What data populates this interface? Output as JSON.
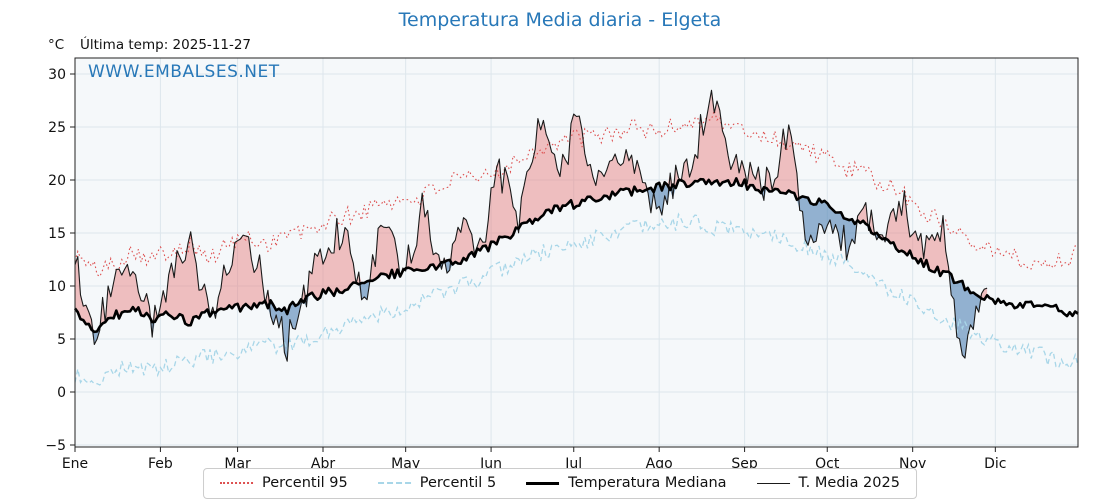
{
  "title": "Temperatura Media diaria - Elgeta",
  "header": {
    "unit_label": "°C",
    "last_temp": "Última temp: 2025-11-27"
  },
  "watermark": "WWW.EMBALSES.NET",
  "colors": {
    "title_blue": "#2878b8",
    "percentil95": "#dd5050",
    "percentil5": "#a8d6e8",
    "mediana": "#000000",
    "t_media_2025": "#1a1a1a",
    "fill_above": "#e67878",
    "fill_above_opacity": 0.45,
    "fill_below": "#5082b4",
    "fill_below_opacity": 0.6,
    "plot_bg": "#f5f8fa",
    "grid": "#dde6ec",
    "spine": "#222222"
  },
  "chart_data": {
    "type": "line",
    "title": "Temperatura Media diaria - Elgeta",
    "xlabel": "",
    "ylabel": "°C",
    "ylim": [
      -5,
      31.5
    ],
    "grid": true,
    "legend_position": "bottom-center",
    "y_ticks": [
      -5,
      0,
      5,
      10,
      15,
      20,
      25,
      30
    ],
    "x_tick_labels": [
      "Ene",
      "Feb",
      "Mar",
      "Abr",
      "May",
      "Jun",
      "Jul",
      "Ago",
      "Sep",
      "Oct",
      "Nov",
      "Dic"
    ],
    "month_start_days": [
      0,
      31,
      59,
      90,
      120,
      151,
      181,
      212,
      243,
      273,
      304,
      334
    ],
    "sampling_note": "daily curves; values below sampled every 7 days and read from gridlines",
    "sample_days": [
      0,
      7,
      14,
      21,
      28,
      35,
      42,
      49,
      56,
      63,
      70,
      77,
      84,
      91,
      98,
      105,
      112,
      119,
      126,
      133,
      140,
      147,
      154,
      161,
      168,
      175,
      182,
      189,
      196,
      203,
      210,
      217,
      224,
      231,
      238,
      245,
      252,
      259,
      266,
      273,
      280,
      287,
      294,
      301,
      308,
      315,
      322,
      329,
      336,
      343,
      350,
      357,
      364
    ],
    "series": [
      {
        "name": "Percentil 95",
        "style": "red-dotted",
        "values": [
          13,
          11.5,
          12,
          13.5,
          12.5,
          13.5,
          14,
          12.5,
          14,
          14.5,
          14,
          15,
          15,
          16,
          16.5,
          17,
          18,
          18,
          18.5,
          19.5,
          20,
          20,
          21,
          22,
          23,
          23.5,
          24,
          24,
          24.5,
          25,
          24.5,
          25,
          25.5,
          26,
          25,
          24.5,
          24,
          23.5,
          23,
          22,
          21,
          20.5,
          19.5,
          18.5,
          17,
          16,
          15,
          14,
          13,
          12.5,
          12,
          12.5,
          13
        ]
      },
      {
        "name": "Percentil 5",
        "style": "lightblue-dashed",
        "values": [
          1.5,
          1,
          2,
          2.5,
          2,
          2.5,
          3,
          3.5,
          3,
          4,
          4.5,
          4,
          5,
          5.5,
          6.5,
          7,
          7.5,
          8,
          8.5,
          9.5,
          10,
          10.5,
          11.5,
          12.5,
          13,
          13.5,
          14,
          14.5,
          15,
          15.5,
          15.5,
          16,
          16,
          15.5,
          15.5,
          15,
          15,
          14.5,
          13.5,
          13,
          12,
          11,
          10,
          9,
          8,
          7,
          6,
          5,
          4.5,
          4,
          3.5,
          3,
          3
        ]
      },
      {
        "name": "Temperatura Mediana",
        "style": "black-thick",
        "values": [
          7.5,
          5.8,
          7.2,
          7.8,
          7,
          7.2,
          6.6,
          7.5,
          7.8,
          8,
          8.3,
          7.8,
          8.8,
          9.3,
          9.8,
          10.5,
          11,
          11.3,
          11.5,
          12,
          12.5,
          13.3,
          14.3,
          15.3,
          16.3,
          17.3,
          17.8,
          18.2,
          18.6,
          19,
          19.3,
          19.5,
          19.8,
          20,
          19.8,
          19.5,
          19,
          18.6,
          18.2,
          17.6,
          16.6,
          15.6,
          14.6,
          13.2,
          12.2,
          11.2,
          10.2,
          9.2,
          8.6,
          8.2,
          8,
          7.8,
          7.2
        ]
      },
      {
        "name": "T. Media 2025",
        "style": "dark-thin",
        "end_day": 331,
        "values": [
          12.5,
          5,
          10.5,
          11.5,
          6.5,
          11,
          13.5,
          7,
          12,
          14.5,
          9,
          4.5,
          9.5,
          14,
          15.5,
          9,
          16,
          10.5,
          17.5,
          11,
          16,
          13,
          21,
          16.5,
          25.5,
          20,
          25.5,
          19,
          22.5,
          21,
          17.5,
          19.5,
          21.5,
          28.5,
          22,
          20,
          19.5,
          25,
          13.5,
          16.5,
          14,
          17,
          14.5,
          17.5,
          13,
          15,
          3,
          8.5
        ]
      }
    ]
  }
}
